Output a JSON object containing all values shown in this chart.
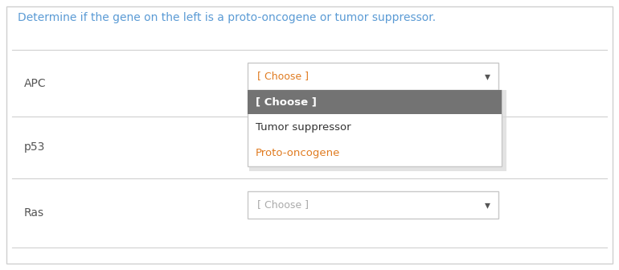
{
  "title": "Determine if the gene on the left is a proto-oncogene or tumor suppressor.",
  "title_color": "#5b9bd5",
  "background_color": "#ffffff",
  "outer_border_color": "#d0d0d0",
  "genes": [
    "APC",
    "p53",
    "Ras"
  ],
  "gene_color": "#555555",
  "gene_fontsize": 10,
  "choose_text": "[ Choose ]",
  "choose_color_orange": "#e07b20",
  "choose_color_gray": "#aaaaaa",
  "dropdown_border": "#c8c8c8",
  "dropdown_bg": "#ffffff",
  "separator_color": "#d0d0d0",
  "open_header_bg": "#737373",
  "open_header_text": "[ Choose ]",
  "open_header_text_color": "#ffffff",
  "open_items": [
    "Tumor suppressor",
    "Proto-oncogene"
  ],
  "open_item_colors": [
    "#333333",
    "#e07b20"
  ],
  "open_item_bg": "#ffffff",
  "arrow_color": "#555555",
  "shadow_color": "#d8d8d8",
  "title_fontsize": 10
}
